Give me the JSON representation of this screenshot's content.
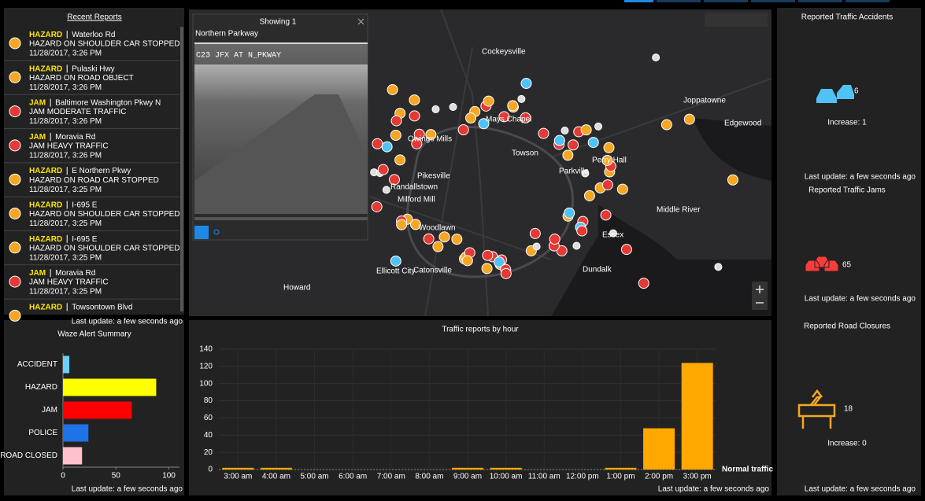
{
  "recent_reports": {
    "title": "Recent Reports",
    "items": [
      {
        "type": "HAZARD",
        "road": "Waterloo Rd",
        "description": "HAZARD ON SHOULDER CAR STOPPED",
        "time": "11/28/2017, 3:26 PM"
      },
      {
        "type": "HAZARD",
        "road": "Pulaski Hwy",
        "description": "HAZARD ON ROAD OBJECT",
        "time": "11/28/2017, 3:26 PM"
      },
      {
        "type": "JAM",
        "road": "Baltimore Washington Pkwy N",
        "description": "JAM MODERATE TRAFFIC",
        "time": "11/28/2017, 3:26 PM"
      },
      {
        "type": "JAM",
        "road": "Moravia Rd",
        "description": "JAM HEAVY TRAFFIC",
        "time": "11/28/2017, 3:26 PM"
      },
      {
        "type": "HAZARD",
        "road": "E Northern Pkwy",
        "description": "HAZARD ON ROAD CAR STOPPED",
        "time": "11/28/2017, 3:25 PM"
      },
      {
        "type": "HAZARD",
        "road": "I-695 E",
        "description": "HAZARD ON SHOULDER CAR STOPPED",
        "time": "11/28/2017, 3:25 PM"
      },
      {
        "type": "HAZARD",
        "road": "I-695 E",
        "description": "HAZARD ON SHOULDER CAR STOPPED",
        "time": "11/28/2017, 3:25 PM"
      },
      {
        "type": "JAM",
        "road": "Moravia Rd",
        "description": "JAM HEAVY TRAFFIC",
        "time": "11/28/2017, 3:25 PM"
      },
      {
        "type": "HAZARD",
        "road": "Towsontown Blvd"
      }
    ],
    "footer": "Last update: a few seconds ago"
  },
  "map": {
    "popup": {
      "header": "Showing 1",
      "title": "Northern Parkway",
      "camera_label": "C23 JFX AT N_PKWAY"
    },
    "places": [
      "Cockeysville",
      "Mays Chapel",
      "Joppatowne",
      "Edgewood",
      "Perry Hall",
      "Parkville",
      "Towson",
      "Owings Mills",
      "Randallstown",
      "Pikesville",
      "Milford Mill",
      "Woodlawn",
      "Catonsville",
      "Ellicott City",
      "Howard",
      "Essex",
      "Middle River",
      "Dundalk"
    ]
  },
  "indicators": [
    {
      "title": "Reported Traffic Accidents",
      "value": 6,
      "subtitle": "Increase: 1",
      "footer": "Last update: a few seconds ago"
    },
    {
      "title": "Reported Traffic Jams",
      "value": 65,
      "footer": "Last update: a few seconds ago"
    },
    {
      "title": "Reported Road Closures",
      "value": 18,
      "subtitle": "Increase: 0",
      "footer": "Last update: a few seconds ago"
    }
  ],
  "chart_data": [
    {
      "type": "hbar",
      "title": "Waze Alert Summary",
      "categories": [
        "ACCIDENT",
        "HAZARD",
        "JAM",
        "POLICE",
        "ROAD CLOSED"
      ],
      "values": [
        6,
        88,
        65,
        24,
        18
      ],
      "colors": [
        "#6ecff6",
        "#ffff00",
        "#ff0000",
        "#1e73e8",
        "#ffc0cb"
      ],
      "xlim": [
        0,
        110
      ],
      "xticks": [
        0,
        50,
        100
      ],
      "footer": "Last update: a few seconds ago"
    },
    {
      "type": "bar",
      "title": "Traffic reports by hour",
      "categories": [
        "3:00 am",
        "4:00 am",
        "5:00 am",
        "6:00 am",
        "7:00 am",
        "8:00 am",
        "9:00 am",
        "10:00 am",
        "11:00 am",
        "12:00 pm",
        "1:00 pm",
        "2:00 pm",
        "3:00 pm"
      ],
      "series": [
        {
          "name": "Normal traffic",
          "color": "#ffa800",
          "values": [
            2,
            2,
            0,
            0,
            0,
            0,
            2,
            2,
            0,
            0,
            2,
            48,
            124
          ]
        }
      ],
      "ylim": [
        0,
        140
      ],
      "yticks": [
        0,
        20,
        40,
        60,
        80,
        100,
        120,
        140
      ],
      "grid": true,
      "footer": "Last update: a few seconds ago"
    }
  ]
}
